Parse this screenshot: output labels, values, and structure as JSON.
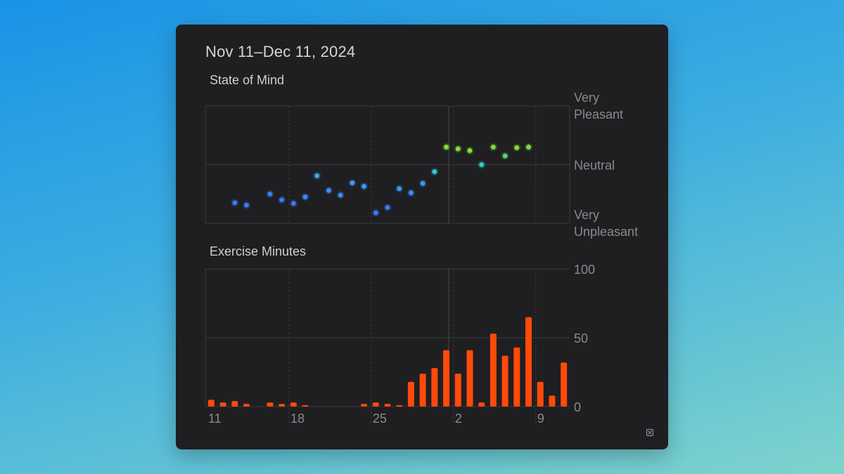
{
  "card": {
    "title": "Nov 11–Dec 11, 2024"
  },
  "x_axis": {
    "tick_labels": [
      "11",
      "18",
      "25",
      "2",
      "9"
    ]
  },
  "chart_data": [
    {
      "type": "scatter",
      "title": "State of Mind",
      "ylabel": "",
      "xlabel": "",
      "y_tick_labels": [
        {
          "lines": [
            "Very",
            "Pleasant"
          ],
          "value": 1
        },
        {
          "lines": [
            "Neutral"
          ],
          "value": 0
        },
        {
          "lines": [
            "Very",
            "Unpleasant"
          ],
          "value": -1
        }
      ],
      "ylim": [
        -1,
        1
      ],
      "x_range": [
        "Nov 11",
        "Dec 11"
      ],
      "x_tick_days": [
        11,
        18,
        25,
        32,
        39
      ],
      "grid": true,
      "points": [
        {
          "x": "Nov 13",
          "day": 13,
          "y": -0.65,
          "color": "#3a7bff"
        },
        {
          "x": "Nov 14",
          "day": 14,
          "y": -0.69,
          "color": "#3a7bff"
        },
        {
          "x": "Nov 16",
          "day": 16,
          "y": -0.5,
          "color": "#3a7bff"
        },
        {
          "x": "Nov 17",
          "day": 17,
          "y": -0.6,
          "color": "#3a7bff"
        },
        {
          "x": "Nov 18",
          "day": 18,
          "y": -0.66,
          "color": "#3a7bff"
        },
        {
          "x": "Nov 19",
          "day": 19,
          "y": -0.55,
          "color": "#3a8dff"
        },
        {
          "x": "Nov 20",
          "day": 20,
          "y": -0.19,
          "color": "#39aaf2"
        },
        {
          "x": "Nov 21",
          "day": 21,
          "y": -0.44,
          "color": "#3a8dff"
        },
        {
          "x": "Nov 22",
          "day": 22,
          "y": -0.52,
          "color": "#3a8dff"
        },
        {
          "x": "Nov 23",
          "day": 23,
          "y": -0.31,
          "color": "#3a9bff"
        },
        {
          "x": "Nov 24",
          "day": 24,
          "y": -0.37,
          "color": "#3a9bff"
        },
        {
          "x": "Nov 25",
          "day": 25,
          "y": -0.82,
          "color": "#3a7bff"
        },
        {
          "x": "Nov 26",
          "day": 26,
          "y": -0.73,
          "color": "#3a7bff"
        },
        {
          "x": "Nov 27",
          "day": 27,
          "y": -0.41,
          "color": "#3a9bff"
        },
        {
          "x": "Nov 28",
          "day": 28,
          "y": -0.48,
          "color": "#3a8dff"
        },
        {
          "x": "Nov 29",
          "day": 29,
          "y": -0.32,
          "color": "#3a9bff"
        },
        {
          "x": "Nov 30",
          "day": 30,
          "y": -0.12,
          "color": "#35c9e6"
        },
        {
          "x": "Dec 1",
          "day": 31,
          "y": 0.3,
          "color": "#7fe03a"
        },
        {
          "x": "Dec 2",
          "day": 32,
          "y": 0.27,
          "color": "#7fe03a"
        },
        {
          "x": "Dec 3",
          "day": 33,
          "y": 0.24,
          "color": "#7fe03a"
        },
        {
          "x": "Dec 4",
          "day": 34,
          "y": 0.0,
          "color": "#2fd1c4"
        },
        {
          "x": "Dec 5",
          "day": 35,
          "y": 0.3,
          "color": "#7fe03a"
        },
        {
          "x": "Dec 6",
          "day": 36,
          "y": 0.15,
          "color": "#5ad67a"
        },
        {
          "x": "Dec 7",
          "day": 37,
          "y": 0.29,
          "color": "#7fe03a"
        },
        {
          "x": "Dec 8",
          "day": 38,
          "y": 0.3,
          "color": "#7fe03a"
        }
      ]
    },
    {
      "type": "bar",
      "title": "Exercise Minutes",
      "xlabel": "",
      "ylabel": "",
      "ylim": [
        0,
        100
      ],
      "y_ticks": [
        100,
        50,
        0
      ],
      "x_range": [
        "Nov 11",
        "Dec 11"
      ],
      "x_tick_days": [
        11,
        18,
        25,
        32,
        39
      ],
      "grid": true,
      "color": "#ff4a0a",
      "bars": [
        {
          "x": "Nov 11",
          "day": 11,
          "value": 5
        },
        {
          "x": "Nov 12",
          "day": 12,
          "value": 3
        },
        {
          "x": "Nov 13",
          "day": 13,
          "value": 4
        },
        {
          "x": "Nov 14",
          "day": 14,
          "value": 2
        },
        {
          "x": "Nov 15",
          "day": 15,
          "value": 0
        },
        {
          "x": "Nov 16",
          "day": 16,
          "value": 3
        },
        {
          "x": "Nov 17",
          "day": 17,
          "value": 2
        },
        {
          "x": "Nov 18",
          "day": 18,
          "value": 3
        },
        {
          "x": "Nov 19",
          "day": 19,
          "value": 1
        },
        {
          "x": "Nov 20",
          "day": 20,
          "value": 0
        },
        {
          "x": "Nov 21",
          "day": 21,
          "value": 0
        },
        {
          "x": "Nov 22",
          "day": 22,
          "value": 0
        },
        {
          "x": "Nov 23",
          "day": 23,
          "value": 0
        },
        {
          "x": "Nov 24",
          "day": 24,
          "value": 2
        },
        {
          "x": "Nov 25",
          "day": 25,
          "value": 3
        },
        {
          "x": "Nov 26",
          "day": 26,
          "value": 2
        },
        {
          "x": "Nov 27",
          "day": 27,
          "value": 1
        },
        {
          "x": "Nov 28",
          "day": 28,
          "value": 18
        },
        {
          "x": "Nov 29",
          "day": 29,
          "value": 24
        },
        {
          "x": "Nov 30",
          "day": 30,
          "value": 28
        },
        {
          "x": "Dec 1",
          "day": 31,
          "value": 41
        },
        {
          "x": "Dec 2",
          "day": 32,
          "value": 24
        },
        {
          "x": "Dec 3",
          "day": 33,
          "value": 41
        },
        {
          "x": "Dec 4",
          "day": 34,
          "value": 3
        },
        {
          "x": "Dec 5",
          "day": 35,
          "value": 53
        },
        {
          "x": "Dec 6",
          "day": 36,
          "value": 37
        },
        {
          "x": "Dec 7",
          "day": 37,
          "value": 43
        },
        {
          "x": "Dec 8",
          "day": 38,
          "value": 65
        },
        {
          "x": "Dec 9",
          "day": 39,
          "value": 18
        },
        {
          "x": "Dec 10",
          "day": 40,
          "value": 8
        },
        {
          "x": "Dec 11",
          "day": 41,
          "value": 32
        }
      ]
    }
  ],
  "icons": {
    "expand": "expand-icon"
  },
  "colors": {
    "card_background": "#1f1f21",
    "grid": "#3a3a3d",
    "axis_text": "#8a8a8e",
    "bar": "#ff4a0a"
  }
}
